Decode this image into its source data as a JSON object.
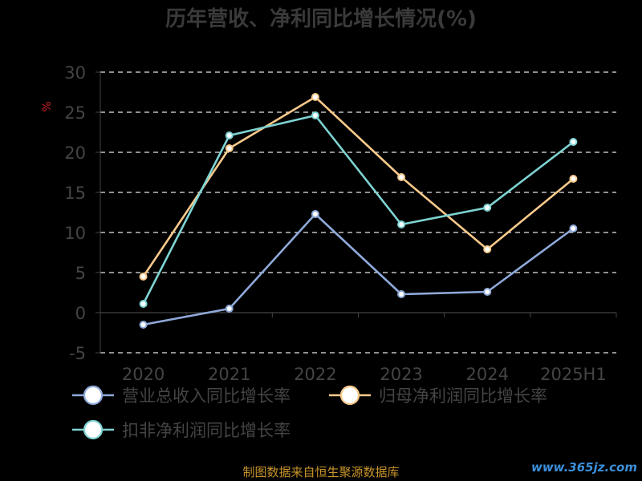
{
  "chart_data": {
    "type": "line",
    "title": "历年营收、净利同比增长情况(%)",
    "unit_label": "%",
    "categories": [
      "2020",
      "2021",
      "2022",
      "2023",
      "2024",
      "2025H1"
    ],
    "ylim": [
      -5,
      30
    ],
    "yticks": [
      -5,
      0,
      5,
      10,
      15,
      20,
      25,
      30
    ],
    "grid": true,
    "legend_position": "bottom",
    "series": [
      {
        "name": "营业总收入同比增长率",
        "color": "#8fa9d9",
        "values": [
          -1.5,
          0.5,
          12.3,
          2.3,
          2.6,
          10.5
        ]
      },
      {
        "name": "归母净利润同比增长率",
        "color": "#f7c98b",
        "values": [
          4.5,
          20.5,
          26.9,
          16.9,
          7.9,
          16.7
        ]
      },
      {
        "name": "扣非净利润同比增长率",
        "color": "#7fd3d3",
        "values": [
          1.1,
          22.1,
          24.6,
          11.0,
          13.1,
          21.3
        ]
      }
    ]
  },
  "footer": {
    "source": "制图数据来自恒生聚源数据库",
    "watermark": "www.365jz.com"
  },
  "colors": {
    "background": "#000000",
    "axis_text": "#444444",
    "grid": "#e6e6e6"
  }
}
